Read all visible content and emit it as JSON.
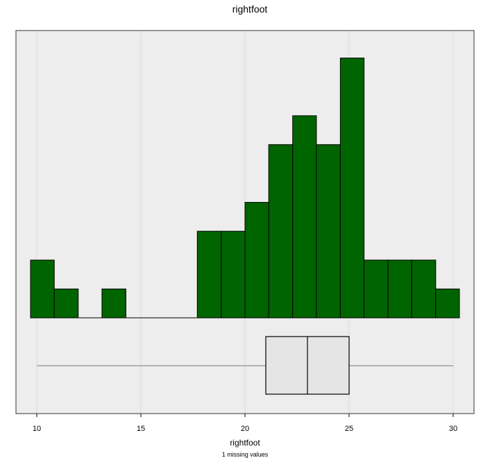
{
  "chart_data": {
    "type": "histogram",
    "title": "rightfoot",
    "xlabel": "rightfoot",
    "note": "1 missing values",
    "xlim": [
      9.7,
      30.3
    ],
    "x_ticks": [
      10,
      15,
      20,
      25,
      30
    ],
    "grid": true,
    "bar_color": "#006400",
    "box_fill": "#e5e5e5",
    "panel_bg": "#ededed",
    "grid_color": "#d9d9d9",
    "bins": [
      {
        "start": 9.7,
        "end": 10.84,
        "count": 2
      },
      {
        "start": 10.84,
        "end": 11.99,
        "count": 1
      },
      {
        "start": 11.99,
        "end": 13.13,
        "count": 0
      },
      {
        "start": 13.13,
        "end": 14.28,
        "count": 1
      },
      {
        "start": 14.28,
        "end": 15.42,
        "count": 0
      },
      {
        "start": 15.42,
        "end": 16.57,
        "count": 0
      },
      {
        "start": 16.57,
        "end": 17.71,
        "count": 0
      },
      {
        "start": 17.71,
        "end": 18.86,
        "count": 3
      },
      {
        "start": 18.86,
        "end": 20.0,
        "count": 3
      },
      {
        "start": 20.0,
        "end": 21.14,
        "count": 4
      },
      {
        "start": 21.14,
        "end": 22.29,
        "count": 6
      },
      {
        "start": 22.29,
        "end": 23.43,
        "count": 7
      },
      {
        "start": 23.43,
        "end": 24.58,
        "count": 6
      },
      {
        "start": 24.58,
        "end": 25.72,
        "count": 9
      },
      {
        "start": 25.72,
        "end": 26.87,
        "count": 2
      },
      {
        "start": 26.87,
        "end": 28.01,
        "count": 2
      },
      {
        "start": 28.01,
        "end": 29.16,
        "count": 2
      },
      {
        "start": 29.16,
        "end": 30.3,
        "count": 1
      }
    ],
    "boxplot": {
      "min": 10,
      "q1": 21,
      "median": 23,
      "q3": 25,
      "max": 30
    }
  }
}
